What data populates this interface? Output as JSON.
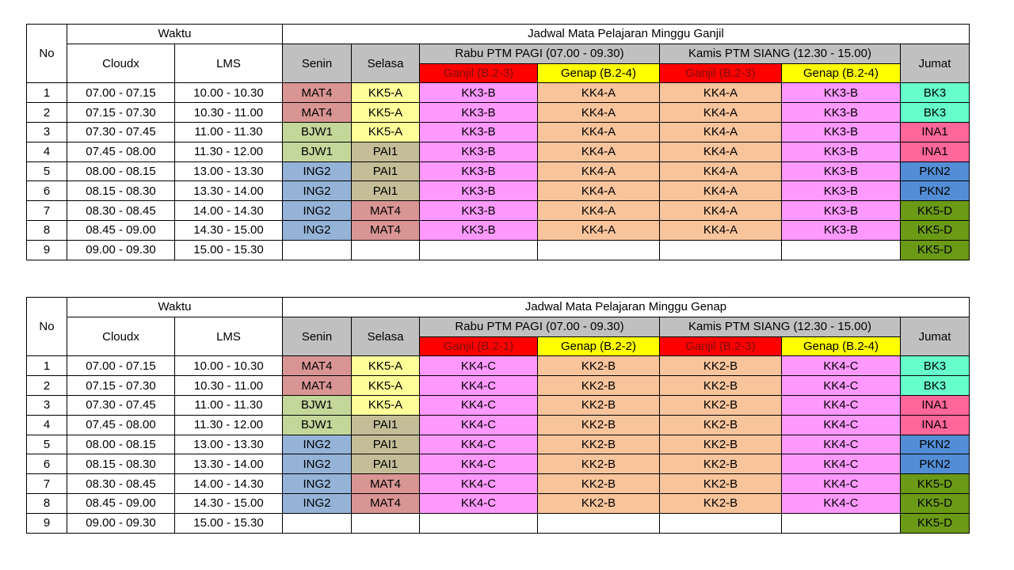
{
  "colors": {
    "MAT4": "#d99594",
    "KK5-A": "#ffff99",
    "BJW1": "#c4d79b",
    "PAI1": "#c4bd97",
    "ING2": "#95b3d7",
    "KK3-B": "#ff99ff",
    "KK4-A": "#f8c49c",
    "KK4-C": "#ff99ff",
    "KK2-B": "#f8c49c",
    "BK3": "#66ffcc",
    "INA1": "#ff6699",
    "PKN2": "#538dd5",
    "KK5-D": "#6b9a16",
    "header_gray": "#c0c0c0",
    "ganjil_red": "#ff0000",
    "genap_yellow": "#ffff00"
  },
  "tables": [
    {
      "headers": {
        "no": "No",
        "waktu": "Waktu",
        "cloudx": "Cloudx",
        "lms": "LMS",
        "jadwal": "Jadwal Mata Pelajaran Minggu Ganjil",
        "senin": "Senin",
        "selasa": "Selasa",
        "rabu": "Rabu PTM  PAGI (07.00 - 09.30)",
        "kamis": "Kamis PTM SIANG (12.30 - 15.00)",
        "jumat": "Jumat",
        "rabu_ganjil": "Ganjil (B.2-3)",
        "rabu_genap": "Genap (B.2-4)",
        "kamis_ganjil": "Ganjil (B.2-3)",
        "kamis_genap": "Genap (B.2-4)"
      },
      "rows": [
        {
          "no": "1",
          "cloudx": "07.00 - 07.15",
          "lms": "10.00 - 10.30",
          "senin": "MAT4",
          "selasa": "KK5-A",
          "rabu_ganjil": "KK3-B",
          "rabu_genap": "KK4-A",
          "kamis_ganjil": "KK4-A",
          "kamis_genap": "KK3-B",
          "jumat": "BK3"
        },
        {
          "no": "2",
          "cloudx": "07.15 - 07.30",
          "lms": "10.30 - 11.00",
          "senin": "MAT4",
          "selasa": "KK5-A",
          "rabu_ganjil": "KK3-B",
          "rabu_genap": "KK4-A",
          "kamis_ganjil": "KK4-A",
          "kamis_genap": "KK3-B",
          "jumat": "BK3"
        },
        {
          "no": "3",
          "cloudx": "07.30 - 07.45",
          "lms": "11.00 - 11.30",
          "senin": "BJW1",
          "selasa": "KK5-A",
          "rabu_ganjil": "KK3-B",
          "rabu_genap": "KK4-A",
          "kamis_ganjil": "KK4-A",
          "kamis_genap": "KK3-B",
          "jumat": "INA1"
        },
        {
          "no": "4",
          "cloudx": "07.45 - 08.00",
          "lms": "11.30 - 12.00",
          "senin": "BJW1",
          "selasa": "PAI1",
          "rabu_ganjil": "KK3-B",
          "rabu_genap": "KK4-A",
          "kamis_ganjil": "KK4-A",
          "kamis_genap": "KK3-B",
          "jumat": "INA1"
        },
        {
          "no": "5",
          "cloudx": "08.00 - 08.15",
          "lms": "13.00 - 13.30",
          "senin": "ING2",
          "selasa": "PAI1",
          "rabu_ganjil": "KK3-B",
          "rabu_genap": "KK4-A",
          "kamis_ganjil": "KK4-A",
          "kamis_genap": "KK3-B",
          "jumat": "PKN2"
        },
        {
          "no": "6",
          "cloudx": "08.15 - 08.30",
          "lms": "13.30 - 14.00",
          "senin": "ING2",
          "selasa": "PAI1",
          "rabu_ganjil": "KK3-B",
          "rabu_genap": "KK4-A",
          "kamis_ganjil": "KK4-A",
          "kamis_genap": "KK3-B",
          "jumat": "PKN2"
        },
        {
          "no": "7",
          "cloudx": "08.30 - 08.45",
          "lms": "14.00 - 14.30",
          "senin": "ING2",
          "selasa": "MAT4",
          "rabu_ganjil": "KK3-B",
          "rabu_genap": "KK4-A",
          "kamis_ganjil": "KK4-A",
          "kamis_genap": "KK3-B",
          "jumat": "KK5-D"
        },
        {
          "no": "8",
          "cloudx": "08.45 - 09.00",
          "lms": "14.30 - 15.00",
          "senin": "ING2",
          "selasa": "MAT4",
          "rabu_ganjil": "KK3-B",
          "rabu_genap": "KK4-A",
          "kamis_ganjil": "KK4-A",
          "kamis_genap": "KK3-B",
          "jumat": "KK5-D"
        },
        {
          "no": "9",
          "cloudx": "09.00 - 09.30",
          "lms": "15.00 - 15.30",
          "senin": "",
          "selasa": "",
          "rabu_ganjil": "",
          "rabu_genap": "",
          "kamis_ganjil": "",
          "kamis_genap": "",
          "jumat": "KK5-D"
        }
      ]
    },
    {
      "headers": {
        "no": "No",
        "waktu": "Waktu",
        "cloudx": "Cloudx",
        "lms": "LMS",
        "jadwal": "Jadwal Mata Pelajaran Minggu Genap",
        "senin": "Senin",
        "selasa": "Selasa",
        "rabu": "Rabu PTM  PAGI (07.00 - 09.30)",
        "kamis": "Kamis PTM SIANG (12.30 - 15.00)",
        "jumat": "Jumat",
        "rabu_ganjil": "Ganjil (B.2-1)",
        "rabu_genap": "Genap (B.2-2)",
        "kamis_ganjil": "Ganjil (B.2-3)",
        "kamis_genap": "Genap (B.2-4)"
      },
      "rows": [
        {
          "no": "1",
          "cloudx": "07.00 - 07.15",
          "lms": "10.00 - 10.30",
          "senin": "MAT4",
          "selasa": "KK5-A",
          "rabu_ganjil": "KK4-C",
          "rabu_genap": "KK2-B",
          "kamis_ganjil": "KK2-B",
          "kamis_genap": "KK4-C",
          "jumat": "BK3"
        },
        {
          "no": "2",
          "cloudx": "07.15 - 07.30",
          "lms": "10.30 - 11.00",
          "senin": "MAT4",
          "selasa": "KK5-A",
          "rabu_ganjil": "KK4-C",
          "rabu_genap": "KK2-B",
          "kamis_ganjil": "KK2-B",
          "kamis_genap": "KK4-C",
          "jumat": "BK3"
        },
        {
          "no": "3",
          "cloudx": "07.30 - 07.45",
          "lms": "11.00 - 11.30",
          "senin": "BJW1",
          "selasa": "KK5-A",
          "rabu_ganjil": "KK4-C",
          "rabu_genap": "KK2-B",
          "kamis_ganjil": "KK2-B",
          "kamis_genap": "KK4-C",
          "jumat": "INA1"
        },
        {
          "no": "4",
          "cloudx": "07.45 - 08.00",
          "lms": "11.30 - 12.00",
          "senin": "BJW1",
          "selasa": "PAI1",
          "rabu_ganjil": "KK4-C",
          "rabu_genap": "KK2-B",
          "kamis_ganjil": "KK2-B",
          "kamis_genap": "KK4-C",
          "jumat": "INA1"
        },
        {
          "no": "5",
          "cloudx": "08.00 - 08.15",
          "lms": "13.00 - 13.30",
          "senin": "ING2",
          "selasa": "PAI1",
          "rabu_ganjil": "KK4-C",
          "rabu_genap": "KK2-B",
          "kamis_ganjil": "KK2-B",
          "kamis_genap": "KK4-C",
          "jumat": "PKN2"
        },
        {
          "no": "6",
          "cloudx": "08.15 - 08.30",
          "lms": "13.30 - 14.00",
          "senin": "ING2",
          "selasa": "PAI1",
          "rabu_ganjil": "KK4-C",
          "rabu_genap": "KK2-B",
          "kamis_ganjil": "KK2-B",
          "kamis_genap": "KK4-C",
          "jumat": "PKN2"
        },
        {
          "no": "7",
          "cloudx": "08.30 - 08.45",
          "lms": "14.00 - 14.30",
          "senin": "ING2",
          "selasa": "MAT4",
          "rabu_ganjil": "KK4-C",
          "rabu_genap": "KK2-B",
          "kamis_ganjil": "KK2-B",
          "kamis_genap": "KK4-C",
          "jumat": "KK5-D"
        },
        {
          "no": "8",
          "cloudx": "08.45 - 09.00",
          "lms": "14.30 - 15.00",
          "senin": "ING2",
          "selasa": "MAT4",
          "rabu_ganjil": "KK4-C",
          "rabu_genap": "KK2-B",
          "kamis_ganjil": "KK2-B",
          "kamis_genap": "KK4-C",
          "jumat": "KK5-D"
        },
        {
          "no": "9",
          "cloudx": "09.00 - 09.30",
          "lms": "15.00 - 15.30",
          "senin": "",
          "selasa": "",
          "rabu_ganjil": "",
          "rabu_genap": "",
          "kamis_ganjil": "",
          "kamis_genap": "",
          "jumat": "KK5-D"
        }
      ]
    }
  ]
}
